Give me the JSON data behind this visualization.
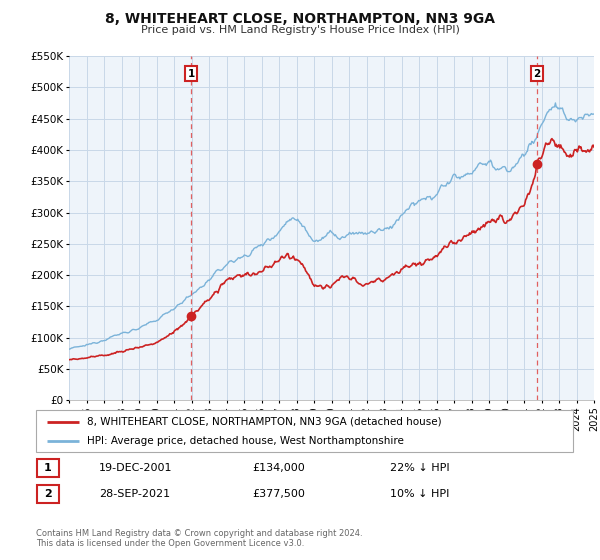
{
  "title": "8, WHITEHEART CLOSE, NORTHAMPTON, NN3 9GA",
  "subtitle": "Price paid vs. HM Land Registry's House Price Index (HPI)",
  "xlim": [
    1995,
    2025
  ],
  "ylim": [
    0,
    550000
  ],
  "yticks": [
    0,
    50000,
    100000,
    150000,
    200000,
    250000,
    300000,
    350000,
    400000,
    450000,
    500000,
    550000
  ],
  "ytick_labels": [
    "£0",
    "£50K",
    "£100K",
    "£150K",
    "£200K",
    "£250K",
    "£300K",
    "£350K",
    "£400K",
    "£450K",
    "£500K",
    "£550K"
  ],
  "sale1_x": 2001.97,
  "sale1_y": 134000,
  "sale1_label": "1",
  "sale1_date": "19-DEC-2001",
  "sale1_price": "£134,000",
  "sale1_hpi": "22% ↓ HPI",
  "sale2_x": 2021.75,
  "sale2_y": 377500,
  "sale2_label": "2",
  "sale2_date": "28-SEP-2021",
  "sale2_price": "£377,500",
  "sale2_hpi": "10% ↓ HPI",
  "hpi_color": "#7bb3d9",
  "price_color": "#cc2222",
  "dashed_line_color": "#e06060",
  "grid_color": "#c8d8e8",
  "bg_color": "#eef4fa",
  "legend_label1": "8, WHITEHEART CLOSE, NORTHAMPTON, NN3 9GA (detached house)",
  "legend_label2": "HPI: Average price, detached house, West Northamptonshire",
  "footer1": "Contains HM Land Registry data © Crown copyright and database right 2024.",
  "footer2": "This data is licensed under the Open Government Licence v3.0."
}
